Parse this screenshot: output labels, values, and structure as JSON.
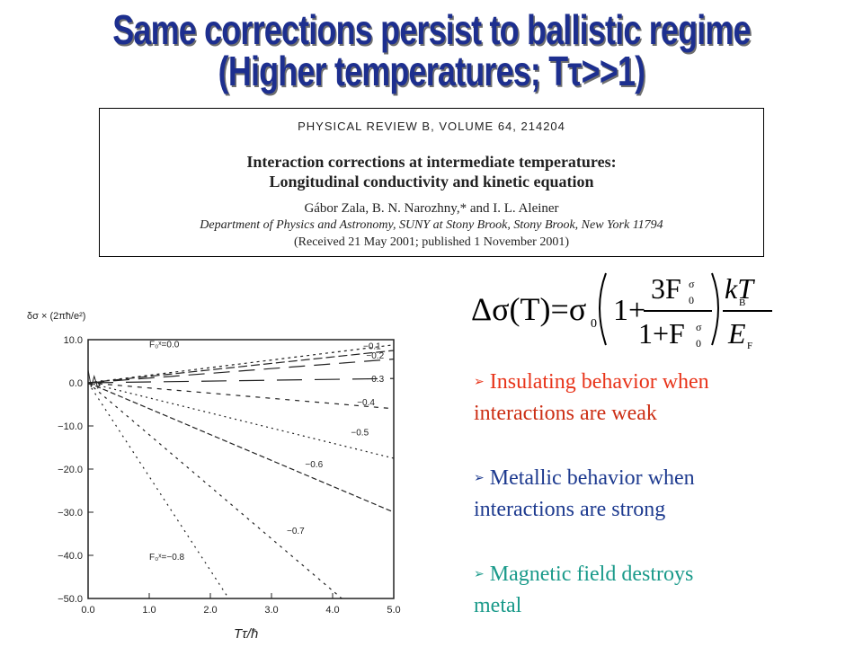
{
  "title": {
    "line1": "Same corrections persist to ballistic regime",
    "line2": "(Higher temperatures; Tτ>>1)"
  },
  "paper": {
    "journal": "PHYSICAL REVIEW B, VOLUME 64, 214204",
    "title_line1": "Interaction corrections at intermediate temperatures:",
    "title_line2": "Longitudinal conductivity and kinetic equation",
    "authors": "Gábor Zala, B. N. Narozhny,* and I. L. Aleiner",
    "affiliation": "Department of Physics and Astronomy, SUNY at Stony Brook, Stony Brook, New York 11794",
    "received": "(Received 21 May 2001; published 1 November 2001)"
  },
  "chart_data": {
    "type": "line",
    "ylabel": "δσ × (2πħ/e²)",
    "xlabel": "Tτ/ħ",
    "xlim": [
      0.0,
      5.0
    ],
    "ylim": [
      -50.0,
      10.0
    ],
    "x_ticks": [
      "0.0",
      "1.0",
      "2.0",
      "3.0",
      "4.0",
      "5.0"
    ],
    "y_ticks": [
      "10.0",
      "0.0",
      "−10.0",
      "−20.0",
      "−30.0",
      "−40.0",
      "−50.0"
    ],
    "series": [
      {
        "name": "F₀ˣ=0.0",
        "x": [
          0.0,
          5.0
        ],
        "y": [
          0.0,
          8.8
        ]
      },
      {
        "name": "−0.1",
        "x": [
          0.0,
          5.0
        ],
        "y": [
          0.0,
          7.5
        ]
      },
      {
        "name": "−0.2",
        "x": [
          0.0,
          5.0
        ],
        "y": [
          0.0,
          5.5
        ]
      },
      {
        "name": "−0.3",
        "x": [
          0.0,
          5.0
        ],
        "y": [
          0.0,
          1.0
        ]
      },
      {
        "name": "−0.4",
        "x": [
          0.0,
          5.0
        ],
        "y": [
          0.0,
          -6.0
        ]
      },
      {
        "name": "−0.5",
        "x": [
          0.0,
          5.0
        ],
        "y": [
          0.0,
          -17.5
        ]
      },
      {
        "name": "−0.6",
        "x": [
          0.0,
          5.0
        ],
        "y": [
          0.0,
          -30.0
        ]
      },
      {
        "name": "−0.7",
        "x": [
          0.0,
          4.15
        ],
        "y": [
          0.0,
          -50.0
        ]
      },
      {
        "name": "F₀ˣ=−0.8",
        "x": [
          0.0,
          2.3
        ],
        "y": [
          0.0,
          -50.0
        ]
      }
    ]
  },
  "formula": {
    "lhs": "Δσ(T)=σ",
    "sub0": "0",
    "one": "1+",
    "num": "3F",
    "den": "1+F",
    "sup": "σ",
    "kT": "kT",
    "kB": "B",
    "EF": "E",
    "F": "F"
  },
  "bullets": {
    "b1_line1": "Insulating behavior when",
    "b1_line2": "interactions are weak",
    "b2_line1": "Metallic behavior when",
    "b2_line2": "interactions are strong",
    "b3_line1": "Magnetic field destroys",
    "b3_line2": "metal",
    "arrow": "➢"
  }
}
